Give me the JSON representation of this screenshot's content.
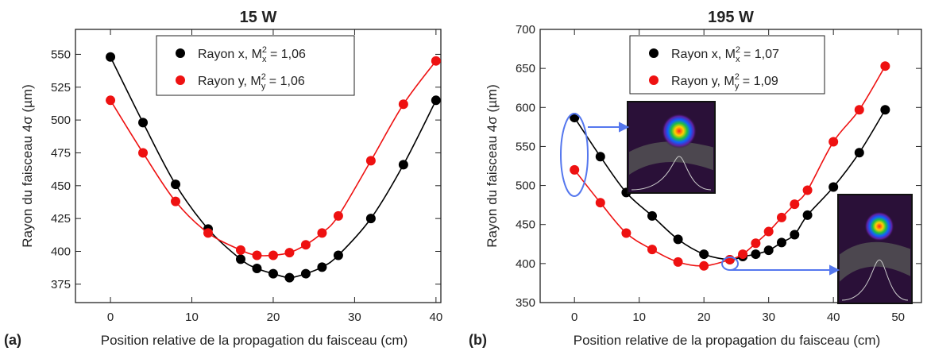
{
  "chart_data": [
    {
      "type": "scatter",
      "title": "15 W",
      "panel_label": "(a)",
      "x_label": "Position relative de la propagation du faisceau (cm)",
      "y_label": "Rayon du faisceau 4σ (µm)",
      "x": [
        0,
        4,
        8,
        12,
        16,
        18,
        20,
        22,
        24,
        26,
        28,
        32,
        36,
        40
      ],
      "series": [
        {
          "name": "Rayon x, M",
          "m2_sup": "2",
          "m2_sub": "x",
          "m2_text": " = 1,06",
          "color": "#000000",
          "values": [
            548,
            498,
            451,
            417,
            394,
            387,
            383,
            380,
            383,
            388,
            397,
            425,
            466,
            515
          ]
        },
        {
          "name": "Rayon y, M",
          "m2_sup": "2",
          "m2_sub": "y",
          "m2_text": " = 1,06",
          "color": "#ee1111",
          "values": [
            515,
            475,
            438,
            414,
            401,
            397,
            397,
            399,
            405,
            414,
            427,
            469,
            512,
            545
          ]
        }
      ],
      "xlim": [
        -4.3,
        40.6
      ],
      "ylim": [
        361,
        569
      ],
      "xticks": [
        0,
        10,
        20,
        30,
        40
      ],
      "yticks": [
        375,
        400,
        425,
        450,
        475,
        500,
        525,
        550
      ]
    },
    {
      "type": "scatter",
      "title": "195 W",
      "panel_label": "(b)",
      "x_label": "Position relative de la propagation du faisceau (cm)",
      "y_label": "Rayon du faisceau 4σ (µm)",
      "x": [
        0,
        4,
        8,
        12,
        16,
        20,
        24,
        26,
        28,
        30,
        32,
        34,
        36,
        40,
        44,
        48
      ],
      "series": [
        {
          "name": "Rayon x, M",
          "m2_sup": "2",
          "m2_sub": "x",
          "m2_text": " = 1,07",
          "color": "#000000",
          "values": [
            587,
            537,
            491,
            461,
            431,
            412,
            405,
            409,
            412,
            417,
            427,
            437,
            462,
            498,
            542,
            597
          ]
        },
        {
          "name": "Rayon y, M",
          "m2_sup": "2",
          "m2_sub": "y",
          "m2_text": " = 1,09",
          "color": "#ee1111",
          "values": [
            520,
            478,
            439,
            418,
            402,
            397,
            405,
            412,
            426,
            441,
            459,
            476,
            494,
            556,
            597,
            653
          ]
        }
      ],
      "xlim": [
        -5.3,
        53.6
      ],
      "ylim": [
        350,
        700
      ],
      "xticks": [
        0,
        10,
        20,
        30,
        40,
        50
      ],
      "yticks": [
        350,
        400,
        450,
        500,
        550,
        600,
        650,
        700
      ]
    }
  ]
}
